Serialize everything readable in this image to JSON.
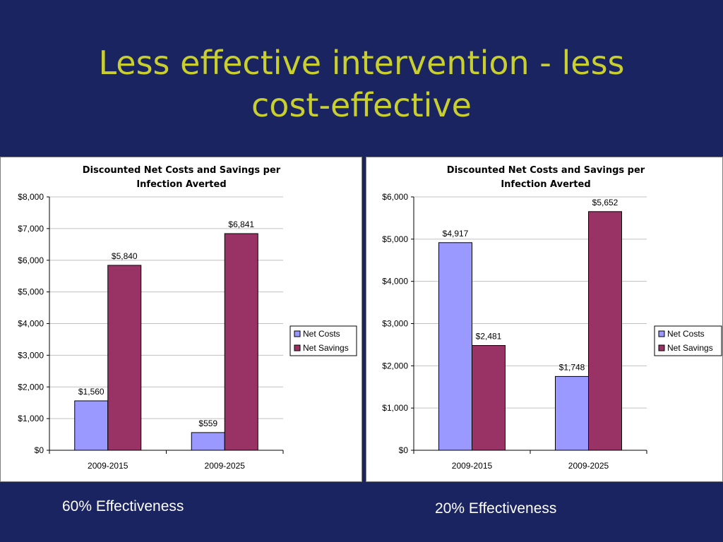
{
  "slide": {
    "title_line1": "Less effective intervention - less",
    "title_line2": "cost-effective"
  },
  "captions": [
    "60% Effectiveness",
    "20% Effectiveness"
  ],
  "colors": {
    "background": "#1a2460",
    "title": "#c8cf2e",
    "net_costs": "#9999ff",
    "net_savings": "#993366"
  },
  "chart_data": [
    {
      "type": "bar",
      "title": "Discounted Net Costs and Savings per Infection Averted",
      "categories": [
        "2009-2015",
        "2009-2025"
      ],
      "series": [
        {
          "name": "Net Costs",
          "values": [
            1560,
            559
          ],
          "labels": [
            "$1,560",
            "$559"
          ],
          "color": "#9999ff"
        },
        {
          "name": "Net Savings",
          "values": [
            5840,
            6841
          ],
          "labels": [
            "$5,840",
            "$6,841"
          ],
          "color": "#993366"
        }
      ],
      "ylim": [
        0,
        8000
      ],
      "yticks": [
        0,
        1000,
        2000,
        3000,
        4000,
        5000,
        6000,
        7000,
        8000
      ],
      "ytick_labels": [
        "$0",
        "$1,000",
        "$2,000",
        "$3,000",
        "$4,000",
        "$5,000",
        "$6,000",
        "$7,000",
        "$8,000"
      ],
      "grid": true,
      "legend": "right"
    },
    {
      "type": "bar",
      "title": "Discounted Net Costs and Savings per Infection Averted",
      "categories": [
        "2009-2015",
        "2009-2025"
      ],
      "series": [
        {
          "name": "Net Costs",
          "values": [
            4917,
            1748
          ],
          "labels": [
            "$4,917",
            "$1,748"
          ],
          "color": "#9999ff"
        },
        {
          "name": "Net Savings",
          "values": [
            2481,
            5652
          ],
          "labels": [
            "$2,481",
            "$5,652"
          ],
          "color": "#993366"
        }
      ],
      "ylim": [
        0,
        6000
      ],
      "yticks": [
        0,
        1000,
        2000,
        3000,
        4000,
        5000,
        6000
      ],
      "ytick_labels": [
        "$0",
        "$1,000",
        "$2,000",
        "$3,000",
        "$4,000",
        "$5,000",
        "$6,000"
      ],
      "grid": true,
      "legend": "right"
    }
  ]
}
